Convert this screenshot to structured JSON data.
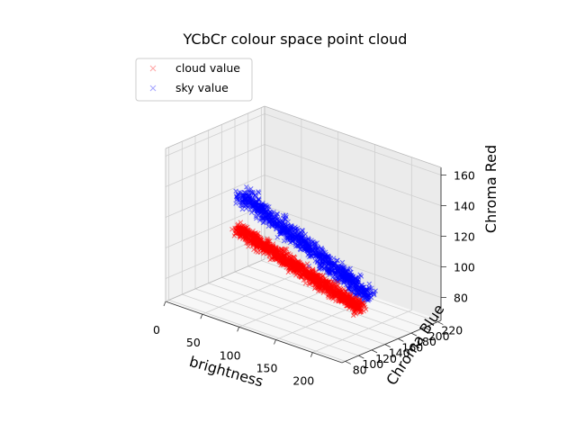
{
  "chart_data": {
    "type": "scatter",
    "projection": "3d",
    "title": "YCbCr colour space point cloud",
    "xlabel": "brightness",
    "ylabel": "Chroma Blue",
    "zlabel": "Chroma Red",
    "xlim": [
      0,
      240
    ],
    "ylim": [
      75,
      225
    ],
    "zlim": [
      65,
      165
    ],
    "xticks": [
      0,
      50,
      100,
      150,
      200
    ],
    "yticks": [
      80,
      100,
      120,
      140,
      160,
      180,
      200,
      220
    ],
    "zticks": [
      80,
      100,
      120,
      140,
      160
    ],
    "grid": true,
    "legend_position": "top-left",
    "series": [
      {
        "name": "cloud value",
        "color": "#ff0000",
        "marker": "x",
        "blob": {
          "x": [
            40,
            235
          ],
          "y": [
            95,
            150
          ],
          "z": [
            90,
            118
          ],
          "center": [
            150,
            125,
            100
          ]
        }
      },
      {
        "name": "sky value",
        "color": "#0000ff",
        "marker": "x",
        "blob": {
          "x": [
            0,
            230
          ],
          "y": [
            110,
            200
          ],
          "z": [
            88,
            125
          ],
          "center": [
            100,
            160,
            105
          ]
        }
      }
    ]
  }
}
